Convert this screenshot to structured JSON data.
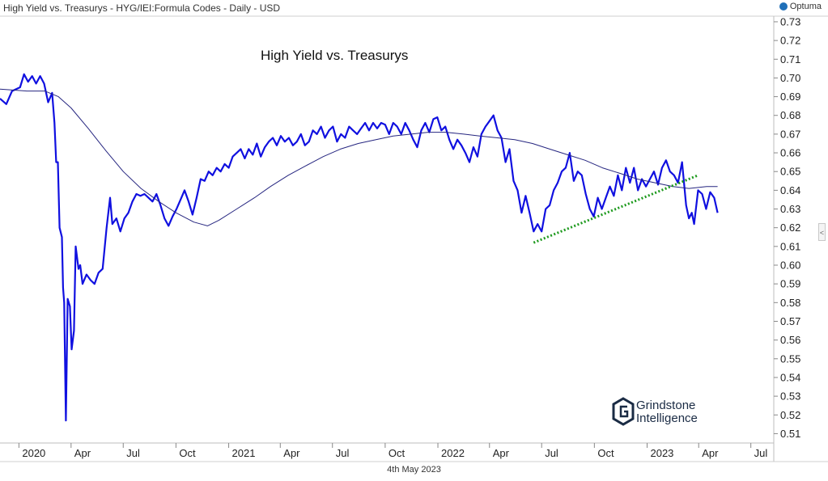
{
  "header": {
    "title": "High Yield vs. Treasurys - HYG/IEI:Formula Codes - Daily - USD",
    "brand": "Optuma"
  },
  "footer": {
    "date": "4th May 2023"
  },
  "logo": {
    "line1": "Grindstone",
    "line2": "Intelligence"
  },
  "collapse_tab": {
    "label": "<"
  },
  "colors": {
    "price_line": "#1010e0",
    "ma_line": "#262680",
    "trendline": "#1e9a1e",
    "grid": "#e6e6e6"
  },
  "chart_data": {
    "type": "line",
    "title": "High Yield vs. Treasurys",
    "x_axis": {
      "min": "2019-11-29",
      "max": "2023-08-10",
      "ticks": [
        {
          "date": "2020-01-01",
          "label": "2020"
        },
        {
          "date": "2020-04-01",
          "label": "Apr"
        },
        {
          "date": "2020-07-01",
          "label": "Jul"
        },
        {
          "date": "2020-10-01",
          "label": "Oct"
        },
        {
          "date": "2021-01-01",
          "label": "2021"
        },
        {
          "date": "2021-04-01",
          "label": "Apr"
        },
        {
          "date": "2021-07-01",
          "label": "Jul"
        },
        {
          "date": "2021-10-01",
          "label": "Oct"
        },
        {
          "date": "2022-01-01",
          "label": "2022"
        },
        {
          "date": "2022-04-01",
          "label": "Apr"
        },
        {
          "date": "2022-07-01",
          "label": "Jul"
        },
        {
          "date": "2022-10-01",
          "label": "Oct"
        },
        {
          "date": "2023-01-01",
          "label": "2023"
        },
        {
          "date": "2023-04-01",
          "label": "Apr"
        },
        {
          "date": "2023-07-01",
          "label": "Jul"
        }
      ]
    },
    "y_axis": {
      "position": "right",
      "min": 0.505,
      "max": 0.733,
      "ticks": [
        "0.51",
        "0.52",
        "0.53",
        "0.54",
        "0.55",
        "0.56",
        "0.57",
        "0.58",
        "0.59",
        "0.60",
        "0.61",
        "0.62",
        "0.63",
        "0.64",
        "0.65",
        "0.66",
        "0.67",
        "0.68",
        "0.69",
        "0.70",
        "0.71",
        "0.72",
        "0.73"
      ]
    },
    "grid": false,
    "series": [
      {
        "kind": "price",
        "points": [
          [
            "2019-11-29",
            0.689
          ],
          [
            "2019-12-10",
            0.686
          ],
          [
            "2019-12-20",
            0.693
          ],
          [
            "2020-01-03",
            0.695
          ],
          [
            "2020-01-10",
            0.702
          ],
          [
            "2020-01-17",
            0.698
          ],
          [
            "2020-01-24",
            0.701
          ],
          [
            "2020-01-31",
            0.697
          ],
          [
            "2020-02-07",
            0.701
          ],
          [
            "2020-02-14",
            0.697
          ],
          [
            "2020-02-21",
            0.687
          ],
          [
            "2020-02-28",
            0.692
          ],
          [
            "2020-03-03",
            0.676
          ],
          [
            "2020-03-06",
            0.655
          ],
          [
            "2020-03-09",
            0.655
          ],
          [
            "2020-03-12",
            0.62
          ],
          [
            "2020-03-16",
            0.615
          ],
          [
            "2020-03-18",
            0.588
          ],
          [
            "2020-03-20",
            0.58
          ],
          [
            "2020-03-23",
            0.517
          ],
          [
            "2020-03-26",
            0.582
          ],
          [
            "2020-03-30",
            0.578
          ],
          [
            "2020-04-02",
            0.555
          ],
          [
            "2020-04-06",
            0.565
          ],
          [
            "2020-04-09",
            0.61
          ],
          [
            "2020-04-14",
            0.598
          ],
          [
            "2020-04-17",
            0.6
          ],
          [
            "2020-04-21",
            0.59
          ],
          [
            "2020-04-28",
            0.595
          ],
          [
            "2020-05-05",
            0.592
          ],
          [
            "2020-05-12",
            0.59
          ],
          [
            "2020-05-19",
            0.596
          ],
          [
            "2020-05-26",
            0.598
          ],
          [
            "2020-06-02",
            0.62
          ],
          [
            "2020-06-08",
            0.636
          ],
          [
            "2020-06-12",
            0.622
          ],
          [
            "2020-06-19",
            0.625
          ],
          [
            "2020-06-26",
            0.618
          ],
          [
            "2020-07-03",
            0.625
          ],
          [
            "2020-07-10",
            0.628
          ],
          [
            "2020-07-17",
            0.634
          ],
          [
            "2020-07-24",
            0.638
          ],
          [
            "2020-07-31",
            0.637
          ],
          [
            "2020-08-07",
            0.638
          ],
          [
            "2020-08-14",
            0.636
          ],
          [
            "2020-08-21",
            0.634
          ],
          [
            "2020-08-28",
            0.638
          ],
          [
            "2020-09-04",
            0.632
          ],
          [
            "2020-09-11",
            0.625
          ],
          [
            "2020-09-18",
            0.621
          ],
          [
            "2020-09-25",
            0.626
          ],
          [
            "2020-10-02",
            0.63
          ],
          [
            "2020-10-09",
            0.635
          ],
          [
            "2020-10-16",
            0.64
          ],
          [
            "2020-10-23",
            0.634
          ],
          [
            "2020-10-30",
            0.627
          ],
          [
            "2020-11-06",
            0.636
          ],
          [
            "2020-11-13",
            0.646
          ],
          [
            "2020-11-20",
            0.645
          ],
          [
            "2020-11-27",
            0.65
          ],
          [
            "2020-12-04",
            0.648
          ],
          [
            "2020-12-11",
            0.652
          ],
          [
            "2020-12-18",
            0.65
          ],
          [
            "2020-12-25",
            0.654
          ],
          [
            "2021-01-01",
            0.652
          ],
          [
            "2021-01-08",
            0.658
          ],
          [
            "2021-01-15",
            0.66
          ],
          [
            "2021-01-22",
            0.662
          ],
          [
            "2021-01-29",
            0.657
          ],
          [
            "2021-02-05",
            0.662
          ],
          [
            "2021-02-12",
            0.659
          ],
          [
            "2021-02-19",
            0.665
          ],
          [
            "2021-02-26",
            0.658
          ],
          [
            "2021-03-05",
            0.663
          ],
          [
            "2021-03-12",
            0.666
          ],
          [
            "2021-03-19",
            0.668
          ],
          [
            "2021-03-26",
            0.664
          ],
          [
            "2021-04-02",
            0.669
          ],
          [
            "2021-04-09",
            0.666
          ],
          [
            "2021-04-16",
            0.668
          ],
          [
            "2021-04-23",
            0.664
          ],
          [
            "2021-04-30",
            0.666
          ],
          [
            "2021-05-07",
            0.67
          ],
          [
            "2021-05-14",
            0.664
          ],
          [
            "2021-05-21",
            0.666
          ],
          [
            "2021-05-28",
            0.672
          ],
          [
            "2021-06-04",
            0.67
          ],
          [
            "2021-06-11",
            0.674
          ],
          [
            "2021-06-18",
            0.668
          ],
          [
            "2021-06-25",
            0.672
          ],
          [
            "2021-07-02",
            0.674
          ],
          [
            "2021-07-09",
            0.666
          ],
          [
            "2021-07-16",
            0.67
          ],
          [
            "2021-07-23",
            0.668
          ],
          [
            "2021-07-30",
            0.674
          ],
          [
            "2021-08-06",
            0.672
          ],
          [
            "2021-08-13",
            0.67
          ],
          [
            "2021-08-20",
            0.673
          ],
          [
            "2021-08-27",
            0.676
          ],
          [
            "2021-09-03",
            0.672
          ],
          [
            "2021-09-10",
            0.676
          ],
          [
            "2021-09-17",
            0.673
          ],
          [
            "2021-09-24",
            0.676
          ],
          [
            "2021-10-01",
            0.675
          ],
          [
            "2021-10-08",
            0.67
          ],
          [
            "2021-10-15",
            0.676
          ],
          [
            "2021-10-22",
            0.674
          ],
          [
            "2021-10-29",
            0.67
          ],
          [
            "2021-11-05",
            0.676
          ],
          [
            "2021-11-12",
            0.672
          ],
          [
            "2021-11-19",
            0.667
          ],
          [
            "2021-11-26",
            0.663
          ],
          [
            "2021-12-03",
            0.672
          ],
          [
            "2021-12-10",
            0.676
          ],
          [
            "2021-12-17",
            0.671
          ],
          [
            "2021-12-24",
            0.678
          ],
          [
            "2021-12-31",
            0.679
          ],
          [
            "2022-01-07",
            0.672
          ],
          [
            "2022-01-14",
            0.674
          ],
          [
            "2022-01-21",
            0.667
          ],
          [
            "2022-01-28",
            0.662
          ],
          [
            "2022-02-04",
            0.667
          ],
          [
            "2022-02-11",
            0.664
          ],
          [
            "2022-02-18",
            0.66
          ],
          [
            "2022-02-25",
            0.655
          ],
          [
            "2022-03-04",
            0.663
          ],
          [
            "2022-03-11",
            0.658
          ],
          [
            "2022-03-18",
            0.67
          ],
          [
            "2022-03-25",
            0.674
          ],
          [
            "2022-04-01",
            0.677
          ],
          [
            "2022-04-08",
            0.68
          ],
          [
            "2022-04-15",
            0.672
          ],
          [
            "2022-04-22",
            0.668
          ],
          [
            "2022-04-29",
            0.655
          ],
          [
            "2022-05-06",
            0.662
          ],
          [
            "2022-05-13",
            0.645
          ],
          [
            "2022-05-20",
            0.64
          ],
          [
            "2022-05-27",
            0.628
          ],
          [
            "2022-06-03",
            0.637
          ],
          [
            "2022-06-10",
            0.628
          ],
          [
            "2022-06-17",
            0.618
          ],
          [
            "2022-06-24",
            0.622
          ],
          [
            "2022-07-01",
            0.618
          ],
          [
            "2022-07-08",
            0.63
          ],
          [
            "2022-07-15",
            0.632
          ],
          [
            "2022-07-22",
            0.64
          ],
          [
            "2022-07-29",
            0.644
          ],
          [
            "2022-08-05",
            0.65
          ],
          [
            "2022-08-12",
            0.652
          ],
          [
            "2022-08-19",
            0.66
          ],
          [
            "2022-08-26",
            0.645
          ],
          [
            "2022-09-02",
            0.65
          ],
          [
            "2022-09-09",
            0.648
          ],
          [
            "2022-09-16",
            0.638
          ],
          [
            "2022-09-23",
            0.63
          ],
          [
            "2022-09-30",
            0.626
          ],
          [
            "2022-10-07",
            0.636
          ],
          [
            "2022-10-14",
            0.63
          ],
          [
            "2022-10-21",
            0.636
          ],
          [
            "2022-10-28",
            0.642
          ],
          [
            "2022-11-04",
            0.637
          ],
          [
            "2022-11-11",
            0.648
          ],
          [
            "2022-11-18",
            0.64
          ],
          [
            "2022-11-25",
            0.652
          ],
          [
            "2022-12-02",
            0.644
          ],
          [
            "2022-12-09",
            0.652
          ],
          [
            "2022-12-16",
            0.64
          ],
          [
            "2022-12-23",
            0.646
          ],
          [
            "2022-12-30",
            0.642
          ],
          [
            "2023-01-06",
            0.646
          ],
          [
            "2023-01-13",
            0.65
          ],
          [
            "2023-01-20",
            0.643
          ],
          [
            "2023-01-27",
            0.652
          ],
          [
            "2023-02-03",
            0.656
          ],
          [
            "2023-02-10",
            0.65
          ],
          [
            "2023-02-17",
            0.648
          ],
          [
            "2023-02-24",
            0.644
          ],
          [
            "2023-03-03",
            0.655
          ],
          [
            "2023-03-10",
            0.632
          ],
          [
            "2023-03-15",
            0.625
          ],
          [
            "2023-03-20",
            0.628
          ],
          [
            "2023-03-24",
            0.622
          ],
          [
            "2023-03-31",
            0.64
          ],
          [
            "2023-04-07",
            0.638
          ],
          [
            "2023-04-14",
            0.63
          ],
          [
            "2023-04-21",
            0.639
          ],
          [
            "2023-04-28",
            0.636
          ],
          [
            "2023-05-04",
            0.628
          ]
        ]
      },
      {
        "kind": "moving-average",
        "points": [
          [
            "2019-11-29",
            0.694
          ],
          [
            "2020-01-15",
            0.693
          ],
          [
            "2020-02-15",
            0.693
          ],
          [
            "2020-03-10",
            0.69
          ],
          [
            "2020-04-01",
            0.684
          ],
          [
            "2020-05-01",
            0.673
          ],
          [
            "2020-06-01",
            0.661
          ],
          [
            "2020-07-01",
            0.65
          ],
          [
            "2020-08-01",
            0.641
          ],
          [
            "2020-09-01",
            0.634
          ],
          [
            "2020-10-01",
            0.628
          ],
          [
            "2020-11-01",
            0.623
          ],
          [
            "2020-11-25",
            0.621
          ],
          [
            "2020-12-15",
            0.624
          ],
          [
            "2021-01-15",
            0.63
          ],
          [
            "2021-02-15",
            0.636
          ],
          [
            "2021-03-15",
            0.642
          ],
          [
            "2021-04-15",
            0.648
          ],
          [
            "2021-05-15",
            0.653
          ],
          [
            "2021-06-15",
            0.658
          ],
          [
            "2021-07-15",
            0.662
          ],
          [
            "2021-08-15",
            0.665
          ],
          [
            "2021-09-15",
            0.667
          ],
          [
            "2021-10-15",
            0.669
          ],
          [
            "2021-11-15",
            0.67
          ],
          [
            "2021-12-15",
            0.671
          ],
          [
            "2022-01-15",
            0.671
          ],
          [
            "2022-02-15",
            0.67
          ],
          [
            "2022-03-15",
            0.669
          ],
          [
            "2022-04-15",
            0.668
          ],
          [
            "2022-05-15",
            0.667
          ],
          [
            "2022-06-15",
            0.665
          ],
          [
            "2022-07-15",
            0.662
          ],
          [
            "2022-08-15",
            0.659
          ],
          [
            "2022-09-15",
            0.656
          ],
          [
            "2022-10-15",
            0.652
          ],
          [
            "2022-11-15",
            0.649
          ],
          [
            "2022-12-15",
            0.646
          ],
          [
            "2023-01-15",
            0.644
          ],
          [
            "2023-02-15",
            0.642
          ],
          [
            "2023-03-15",
            0.641
          ],
          [
            "2023-04-15",
            0.642
          ],
          [
            "2023-05-04",
            0.642
          ]
        ]
      },
      {
        "kind": "trendline",
        "style": "dotted",
        "points": [
          [
            "2022-06-17",
            0.612
          ],
          [
            "2023-03-31",
            0.648
          ]
        ]
      }
    ]
  }
}
